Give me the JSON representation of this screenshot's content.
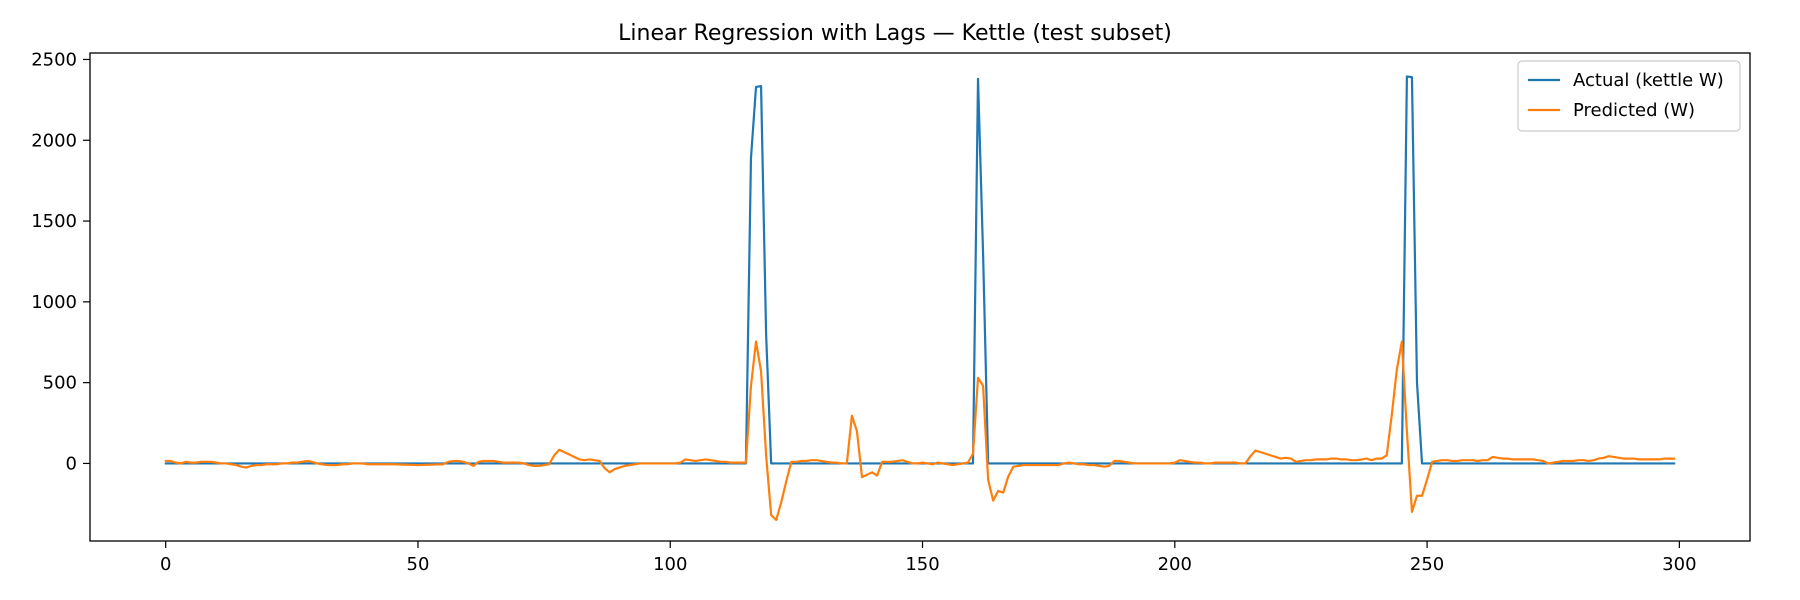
{
  "chart_data": {
    "type": "line",
    "title": "Linear Regression with Lags — Kettle (test subset)",
    "xlabel": "",
    "ylabel": "",
    "xlim": [
      -15,
      314
    ],
    "ylim": [
      -480,
      2540
    ],
    "xticks": [
      0,
      50,
      100,
      150,
      200,
      250,
      300
    ],
    "yticks": [
      0,
      500,
      1000,
      1500,
      2000,
      2500
    ],
    "grid": false,
    "legend_position": "top-right",
    "colors": {
      "actual": "#1f77b4",
      "predicted": "#ff7f0e"
    },
    "series": [
      {
        "name": "Actual (kettle W)",
        "color": "#1f77b4",
        "points": [
          [
            0,
            0
          ],
          [
            115,
            0
          ],
          [
            116,
            1890
          ],
          [
            117,
            2330
          ],
          [
            118,
            2335
          ],
          [
            119,
            800
          ],
          [
            120,
            0
          ],
          [
            160,
            0
          ],
          [
            161,
            2380
          ],
          [
            162,
            1300
          ],
          [
            163,
            0
          ],
          [
            245,
            0
          ],
          [
            246,
            2395
          ],
          [
            247,
            2390
          ],
          [
            248,
            500
          ],
          [
            249,
            0
          ],
          [
            299,
            0
          ]
        ]
      },
      {
        "name": "Predicted (W)",
        "color": "#ff7f0e",
        "points": [
          [
            0,
            15
          ],
          [
            1,
            15
          ],
          [
            2,
            5
          ],
          [
            3,
            0
          ],
          [
            4,
            10
          ],
          [
            5,
            5
          ],
          [
            6,
            5
          ],
          [
            7,
            10
          ],
          [
            8,
            10
          ],
          [
            9,
            10
          ],
          [
            10,
            5
          ],
          [
            11,
            0
          ],
          [
            12,
            0
          ],
          [
            13,
            -5
          ],
          [
            14,
            -10
          ],
          [
            15,
            -20
          ],
          [
            16,
            -25
          ],
          [
            17,
            -15
          ],
          [
            18,
            -10
          ],
          [
            19,
            -10
          ],
          [
            20,
            -5
          ],
          [
            21,
            -5
          ],
          [
            22,
            -5
          ],
          [
            23,
            0
          ],
          [
            24,
            0
          ],
          [
            25,
            5
          ],
          [
            26,
            5
          ],
          [
            27,
            10
          ],
          [
            28,
            15
          ],
          [
            29,
            10
          ],
          [
            30,
            0
          ],
          [
            31,
            -5
          ],
          [
            32,
            -10
          ],
          [
            33,
            -10
          ],
          [
            34,
            -10
          ],
          [
            35,
            -5
          ],
          [
            36,
            -5
          ],
          [
            37,
            0
          ],
          [
            38,
            0
          ],
          [
            39,
            0
          ],
          [
            40,
            -5
          ],
          [
            45,
            -5
          ],
          [
            50,
            -10
          ],
          [
            55,
            -5
          ],
          [
            56,
            10
          ],
          [
            57,
            15
          ],
          [
            58,
            15
          ],
          [
            59,
            10
          ],
          [
            60,
            0
          ],
          [
            61,
            -15
          ],
          [
            62,
            10
          ],
          [
            63,
            15
          ],
          [
            64,
            15
          ],
          [
            65,
            15
          ],
          [
            66,
            10
          ],
          [
            67,
            5
          ],
          [
            68,
            5
          ],
          [
            69,
            5
          ],
          [
            70,
            5
          ],
          [
            71,
            0
          ],
          [
            72,
            -10
          ],
          [
            73,
            -15
          ],
          [
            74,
            -15
          ],
          [
            75,
            -10
          ],
          [
            76,
            -5
          ],
          [
            77,
            50
          ],
          [
            78,
            85
          ],
          [
            79,
            70
          ],
          [
            80,
            55
          ],
          [
            81,
            40
          ],
          [
            82,
            25
          ],
          [
            83,
            20
          ],
          [
            84,
            25
          ],
          [
            85,
            20
          ],
          [
            86,
            15
          ],
          [
            87,
            -30
          ],
          [
            88,
            -55
          ],
          [
            89,
            -35
          ],
          [
            90,
            -25
          ],
          [
            91,
            -15
          ],
          [
            92,
            -10
          ],
          [
            93,
            -5
          ],
          [
            94,
            0
          ],
          [
            95,
            0
          ],
          [
            96,
            0
          ],
          [
            97,
            0
          ],
          [
            98,
            0
          ],
          [
            99,
            0
          ],
          [
            100,
            0
          ],
          [
            101,
            0
          ],
          [
            102,
            5
          ],
          [
            103,
            25
          ],
          [
            104,
            20
          ],
          [
            105,
            15
          ],
          [
            106,
            20
          ],
          [
            107,
            25
          ],
          [
            108,
            20
          ],
          [
            109,
            15
          ],
          [
            110,
            10
          ],
          [
            111,
            10
          ],
          [
            112,
            5
          ],
          [
            113,
            5
          ],
          [
            114,
            5
          ],
          [
            115,
            5
          ],
          [
            116,
            480
          ],
          [
            117,
            755
          ],
          [
            118,
            570
          ],
          [
            119,
            50
          ],
          [
            120,
            -320
          ],
          [
            121,
            -350
          ],
          [
            122,
            -240
          ],
          [
            123,
            -110
          ],
          [
            124,
            10
          ],
          [
            125,
            10
          ],
          [
            126,
            15
          ],
          [
            127,
            15
          ],
          [
            128,
            20
          ],
          [
            129,
            20
          ],
          [
            130,
            15
          ],
          [
            131,
            10
          ],
          [
            132,
            5
          ],
          [
            133,
            5
          ],
          [
            134,
            0
          ],
          [
            135,
            0
          ],
          [
            136,
            295
          ],
          [
            137,
            200
          ],
          [
            138,
            -85
          ],
          [
            139,
            -70
          ],
          [
            140,
            -55
          ],
          [
            141,
            -75
          ],
          [
            142,
            10
          ],
          [
            143,
            10
          ],
          [
            144,
            10
          ],
          [
            145,
            15
          ],
          [
            146,
            20
          ],
          [
            147,
            10
          ],
          [
            148,
            0
          ],
          [
            149,
            0
          ],
          [
            150,
            5
          ],
          [
            151,
            0
          ],
          [
            152,
            -5
          ],
          [
            153,
            5
          ],
          [
            154,
            0
          ],
          [
            155,
            -5
          ],
          [
            156,
            -10
          ],
          [
            157,
            -5
          ],
          [
            158,
            0
          ],
          [
            159,
            5
          ],
          [
            160,
            60
          ],
          [
            161,
            530
          ],
          [
            162,
            480
          ],
          [
            163,
            -100
          ],
          [
            164,
            -230
          ],
          [
            165,
            -170
          ],
          [
            166,
            -180
          ],
          [
            167,
            -80
          ],
          [
            168,
            -20
          ],
          [
            169,
            -15
          ],
          [
            170,
            -10
          ],
          [
            171,
            -10
          ],
          [
            172,
            -10
          ],
          [
            173,
            -10
          ],
          [
            174,
            -10
          ],
          [
            175,
            -10
          ],
          [
            176,
            -10
          ],
          [
            177,
            -10
          ],
          [
            178,
            0
          ],
          [
            179,
            5
          ],
          [
            180,
            0
          ],
          [
            181,
            -5
          ],
          [
            182,
            -5
          ],
          [
            183,
            -10
          ],
          [
            184,
            -10
          ],
          [
            185,
            -15
          ],
          [
            186,
            -20
          ],
          [
            187,
            -15
          ],
          [
            188,
            15
          ],
          [
            189,
            15
          ],
          [
            190,
            10
          ],
          [
            191,
            5
          ],
          [
            192,
            0
          ],
          [
            193,
            0
          ],
          [
            194,
            0
          ],
          [
            195,
            0
          ],
          [
            196,
            0
          ],
          [
            197,
            0
          ],
          [
            198,
            0
          ],
          [
            199,
            0
          ],
          [
            200,
            5
          ],
          [
            201,
            20
          ],
          [
            202,
            15
          ],
          [
            203,
            10
          ],
          [
            204,
            5
          ],
          [
            205,
            5
          ],
          [
            206,
            0
          ],
          [
            207,
            0
          ],
          [
            208,
            5
          ],
          [
            209,
            5
          ],
          [
            210,
            5
          ],
          [
            211,
            5
          ],
          [
            212,
            5
          ],
          [
            213,
            0
          ],
          [
            214,
            0
          ],
          [
            215,
            45
          ],
          [
            216,
            80
          ],
          [
            217,
            70
          ],
          [
            218,
            60
          ],
          [
            219,
            50
          ],
          [
            220,
            40
          ],
          [
            221,
            30
          ],
          [
            222,
            35
          ],
          [
            223,
            30
          ],
          [
            224,
            10
          ],
          [
            225,
            15
          ],
          [
            226,
            20
          ],
          [
            227,
            20
          ],
          [
            228,
            25
          ],
          [
            229,
            25
          ],
          [
            230,
            25
          ],
          [
            231,
            30
          ],
          [
            232,
            30
          ],
          [
            233,
            25
          ],
          [
            234,
            25
          ],
          [
            235,
            20
          ],
          [
            236,
            20
          ],
          [
            237,
            25
          ],
          [
            238,
            30
          ],
          [
            239,
            20
          ],
          [
            240,
            30
          ],
          [
            241,
            30
          ],
          [
            242,
            50
          ],
          [
            243,
            300
          ],
          [
            244,
            580
          ],
          [
            245,
            755
          ],
          [
            246,
            200
          ],
          [
            247,
            -300
          ],
          [
            248,
            -200
          ],
          [
            249,
            -200
          ],
          [
            250,
            -100
          ],
          [
            251,
            10
          ],
          [
            252,
            15
          ],
          [
            253,
            20
          ],
          [
            254,
            20
          ],
          [
            255,
            15
          ],
          [
            256,
            15
          ],
          [
            257,
            20
          ],
          [
            258,
            20
          ],
          [
            259,
            20
          ],
          [
            260,
            15
          ],
          [
            261,
            20
          ],
          [
            262,
            20
          ],
          [
            263,
            40
          ],
          [
            264,
            35
          ],
          [
            265,
            30
          ],
          [
            266,
            30
          ],
          [
            267,
            25
          ],
          [
            268,
            25
          ],
          [
            269,
            25
          ],
          [
            270,
            25
          ],
          [
            271,
            25
          ],
          [
            272,
            20
          ],
          [
            273,
            15
          ],
          [
            274,
            0
          ],
          [
            275,
            5
          ],
          [
            276,
            10
          ],
          [
            277,
            15
          ],
          [
            278,
            15
          ],
          [
            279,
            15
          ],
          [
            280,
            20
          ],
          [
            281,
            20
          ],
          [
            282,
            15
          ],
          [
            283,
            20
          ],
          [
            284,
            30
          ],
          [
            285,
            35
          ],
          [
            286,
            45
          ],
          [
            287,
            40
          ],
          [
            288,
            35
          ],
          [
            289,
            30
          ],
          [
            290,
            30
          ],
          [
            291,
            30
          ],
          [
            292,
            25
          ],
          [
            293,
            25
          ],
          [
            294,
            25
          ],
          [
            295,
            25
          ],
          [
            296,
            25
          ],
          [
            297,
            30
          ],
          [
            298,
            30
          ],
          [
            299,
            30
          ]
        ]
      }
    ]
  }
}
